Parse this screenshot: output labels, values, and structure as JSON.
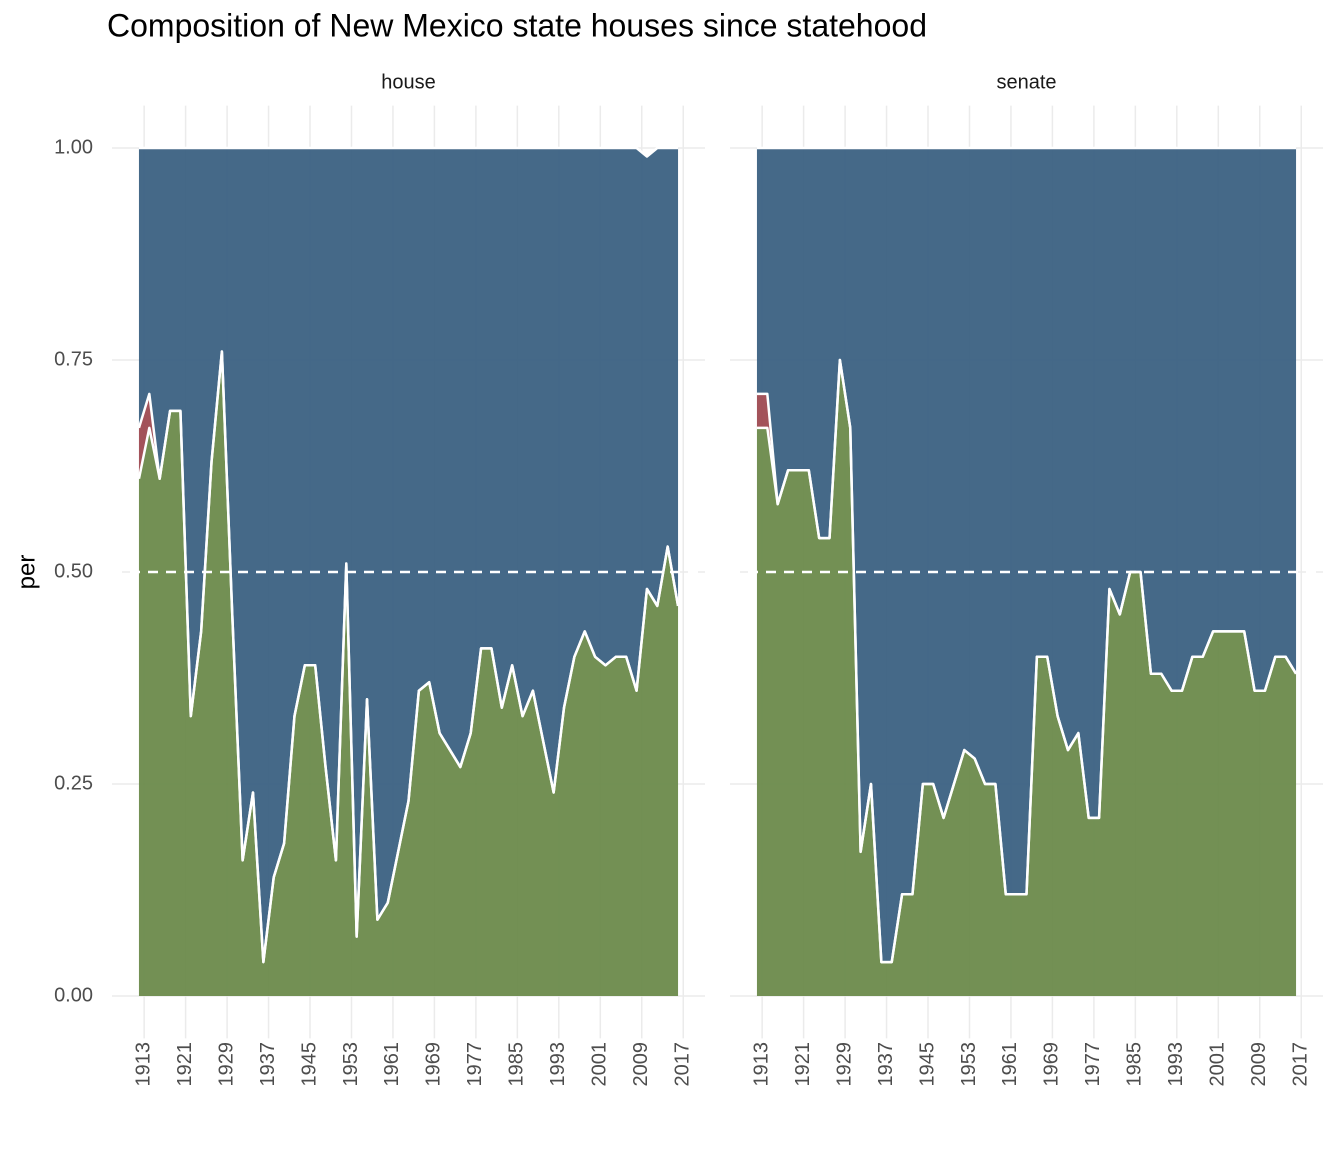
{
  "chart_data": [
    {
      "type": "area",
      "title": "Composition of New Mexico state houses since statehood",
      "facet": "house",
      "ylabel": "per",
      "x": [
        1912,
        1914,
        1916,
        1918,
        1920,
        1922,
        1924,
        1926,
        1928,
        1930,
        1932,
        1934,
        1936,
        1938,
        1940,
        1942,
        1944,
        1946,
        1948,
        1950,
        1952,
        1954,
        1956,
        1958,
        1960,
        1962,
        1964,
        1966,
        1968,
        1970,
        1972,
        1974,
        1976,
        1978,
        1980,
        1982,
        1984,
        1986,
        1988,
        1990,
        1992,
        1994,
        1996,
        1998,
        2000,
        2002,
        2004,
        2006,
        2008,
        2010,
        2012,
        2014,
        2016
      ],
      "series": [
        {
          "color": "#6b8a4b",
          "values": [
            0.61,
            0.67,
            0.61,
            0.69,
            0.69,
            0.33,
            0.43,
            0.63,
            0.76,
            0.45,
            0.16,
            0.24,
            0.04,
            0.14,
            0.18,
            0.33,
            0.39,
            0.39,
            0.27,
            0.16,
            0.51,
            0.07,
            0.35,
            0.09,
            0.11,
            0.17,
            0.23,
            0.36,
            0.37,
            0.31,
            0.29,
            0.27,
            0.31,
            0.41,
            0.41,
            0.34,
            0.39,
            0.33,
            0.36,
            0.3,
            0.24,
            0.34,
            0.4,
            0.43,
            0.4,
            0.39,
            0.4,
            0.4,
            0.36,
            0.48,
            0.46,
            0.53,
            0.46
          ]
        },
        {
          "color": "#9e4a51",
          "values": [
            0.06,
            0.04,
            0,
            0,
            0,
            0,
            0,
            0,
            0,
            0,
            0,
            0,
            0,
            0,
            0,
            0,
            0,
            0,
            0,
            0,
            0,
            0,
            0,
            0,
            0,
            0,
            0,
            0,
            0,
            0,
            0,
            0,
            0,
            0,
            0,
            0,
            0,
            0,
            0,
            0,
            0,
            0,
            0,
            0,
            0,
            0,
            0,
            0,
            0,
            0,
            0,
            0,
            0
          ]
        },
        {
          "color": "#3b6182",
          "values": [
            0.33,
            0.29,
            0.39,
            0.31,
            0.31,
            0.67,
            0.57,
            0.37,
            0.24,
            0.55,
            0.84,
            0.76,
            0.96,
            0.86,
            0.82,
            0.67,
            0.61,
            0.61,
            0.73,
            0.84,
            0.49,
            0.93,
            0.65,
            0.91,
            0.89,
            0.83,
            0.77,
            0.64,
            0.63,
            0.69,
            0.71,
            0.73,
            0.69,
            0.59,
            0.59,
            0.66,
            0.61,
            0.67,
            0.64,
            0.7,
            0.76,
            0.66,
            0.6,
            0.57,
            0.6,
            0.61,
            0.6,
            0.6,
            0.64,
            0.51,
            0.54,
            0.47,
            0.54
          ]
        }
      ],
      "hline": 0.5,
      "xlim": [
        1906.8,
        2021.2
      ],
      "xticks": [
        1913,
        1921,
        1929,
        1937,
        1945,
        1953,
        1961,
        1969,
        1977,
        1985,
        1993,
        2001,
        2009,
        2017
      ],
      "ylim": [
        -0.05,
        1.05
      ],
      "yticks": [
        {
          "value": 0,
          "label": "0.00"
        },
        {
          "value": 0.25,
          "label": "0.25"
        },
        {
          "value": 0.5,
          "label": "0.50"
        },
        {
          "value": 0.75,
          "label": "0.75"
        },
        {
          "value": 1,
          "label": "1.00"
        }
      ],
      "grid": true
    },
    {
      "type": "area",
      "facet": "senate",
      "x": [
        1912,
        1914,
        1916,
        1918,
        1920,
        1922,
        1924,
        1926,
        1928,
        1930,
        1932,
        1934,
        1936,
        1938,
        1940,
        1942,
        1944,
        1946,
        1948,
        1950,
        1952,
        1954,
        1956,
        1958,
        1960,
        1962,
        1964,
        1966,
        1968,
        1970,
        1972,
        1974,
        1976,
        1978,
        1980,
        1982,
        1984,
        1986,
        1988,
        1990,
        1992,
        1994,
        1996,
        1998,
        2000,
        2002,
        2004,
        2006,
        2008,
        2010,
        2012,
        2014,
        2016
      ],
      "series": [
        {
          "color": "#6b8a4b",
          "values": [
            0.67,
            0.67,
            0.58,
            0.62,
            0.62,
            0.62,
            0.54,
            0.54,
            0.75,
            0.67,
            0.17,
            0.25,
            0.04,
            0.04,
            0.12,
            0.12,
            0.25,
            0.25,
            0.21,
            0.25,
            0.29,
            0.28,
            0.25,
            0.25,
            0.12,
            0.12,
            0.12,
            0.4,
            0.4,
            0.33,
            0.29,
            0.31,
            0.21,
            0.21,
            0.48,
            0.45,
            0.5,
            0.5,
            0.38,
            0.38,
            0.36,
            0.36,
            0.4,
            0.4,
            0.43,
            0.43,
            0.43,
            0.43,
            0.36,
            0.36,
            0.4,
            0.4,
            0.38
          ]
        },
        {
          "color": "#9e4a51",
          "values": [
            0.04,
            0.04,
            0,
            0,
            0,
            0,
            0,
            0,
            0,
            0,
            0,
            0,
            0,
            0,
            0,
            0,
            0,
            0,
            0,
            0,
            0,
            0,
            0,
            0,
            0,
            0,
            0,
            0,
            0,
            0,
            0,
            0,
            0,
            0,
            0,
            0,
            0,
            0,
            0,
            0,
            0,
            0,
            0,
            0,
            0,
            0,
            0,
            0,
            0,
            0,
            0,
            0,
            0
          ]
        },
        {
          "color": "#3b6182",
          "values": [
            0.29,
            0.29,
            0.42,
            0.38,
            0.38,
            0.38,
            0.46,
            0.46,
            0.25,
            0.33,
            0.83,
            0.75,
            0.96,
            0.96,
            0.88,
            0.88,
            0.75,
            0.75,
            0.79,
            0.75,
            0.71,
            0.72,
            0.75,
            0.75,
            0.88,
            0.88,
            0.88,
            0.6,
            0.6,
            0.67,
            0.71,
            0.69,
            0.79,
            0.79,
            0.52,
            0.55,
            0.5,
            0.5,
            0.62,
            0.62,
            0.64,
            0.64,
            0.6,
            0.6,
            0.57,
            0.57,
            0.57,
            0.57,
            0.64,
            0.64,
            0.6,
            0.6,
            0.62
          ]
        }
      ],
      "hline": 0.5,
      "xlim": [
        1906.8,
        2021.2
      ],
      "xticks": [
        1913,
        1921,
        1929,
        1937,
        1945,
        1953,
        1961,
        1969,
        1977,
        1985,
        1993,
        2001,
        2009,
        2017
      ],
      "ylim": [
        -0.05,
        1.05
      ],
      "yticks": [
        {
          "value": 0,
          "label": "0.00"
        },
        {
          "value": 0.25,
          "label": "0.25"
        },
        {
          "value": 0.5,
          "label": "0.50"
        },
        {
          "value": 0.75,
          "label": "0.75"
        },
        {
          "value": 1,
          "label": "1.00"
        }
      ],
      "grid": true
    }
  ]
}
